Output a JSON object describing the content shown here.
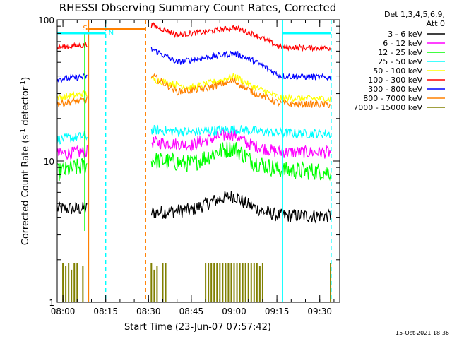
{
  "chart_data": {
    "type": "line",
    "title": "RHESSI Observing Summary Count Rates, Corrected",
    "xlabel": "Start Time (23-Jun-07 07:57:42)",
    "ylabel_parts": {
      "a": "Corrected Count Rate (s",
      "sup1": "-1",
      "b": " detector",
      "sup2": "-1",
      "c": ")"
    },
    "yscale": "log",
    "ylim": [
      1,
      100
    ],
    "x_range_min": [
      -2,
      97
    ],
    "x_ticks": [
      "08:00",
      "08:15",
      "08:30",
      "08:45",
      "09:00",
      "09:15",
      "09:30"
    ],
    "x_tick_min": [
      0,
      15,
      30,
      45,
      60,
      75,
      90
    ],
    "y_ticks": [
      {
        "v": 1,
        "label": "1"
      },
      {
        "v": 10,
        "label": "10"
      },
      {
        "v": 100,
        "label": "100"
      }
    ],
    "legend_header": [
      "Det 1,3,4,5,6,9,",
      "Att 0"
    ],
    "legend_position": "right",
    "timestamp": "15-Oct-2021 18:36",
    "data_gap_min": [
      8.5,
      31
    ],
    "flags": {
      "saa": {
        "label": "S",
        "color": "#ff8000",
        "start_min": 8.5,
        "end_min": 29
      },
      "night": [
        {
          "label": "N",
          "color": "#00ffff",
          "start_min": -2,
          "end_min": 15
        },
        {
          "label": "",
          "color": "#00ffff",
          "start_min": 77,
          "end_min": 94
        }
      ]
    },
    "markers": [
      {
        "kind": "cyan-dashed",
        "x_min": 15,
        "color": "#00ffff"
      },
      {
        "kind": "orange-solid",
        "x_min": 9,
        "color": "#ff8000"
      },
      {
        "kind": "orange-dashed",
        "x_min": 29,
        "color": "#ff8000"
      },
      {
        "kind": "cyan-solid",
        "x_min": 77,
        "color": "#00ffff"
      },
      {
        "kind": "cyan-dashed",
        "x_min": 94,
        "color": "#00ffff"
      }
    ],
    "series": [
      {
        "name": "3 - 6 keV",
        "color": "#000000",
        "jitter": 1.0,
        "points": [
          [
            -2,
            4.6
          ],
          [
            8,
            4.6
          ],
          [
            31,
            4.3
          ],
          [
            45,
            4.5
          ],
          [
            55,
            5.4
          ],
          [
            60,
            5.7
          ],
          [
            64,
            5.0
          ],
          [
            70,
            4.4
          ],
          [
            76,
            4.1
          ],
          [
            94,
            4.1
          ]
        ]
      },
      {
        "name": "6 - 12 keV",
        "color": "#ff00ff",
        "jitter": 0.9,
        "points": [
          [
            -2,
            11.2
          ],
          [
            8,
            11.6
          ],
          [
            31,
            13.6
          ],
          [
            45,
            13.0
          ],
          [
            55,
            15.0
          ],
          [
            60,
            15.5
          ],
          [
            65,
            13.2
          ],
          [
            75,
            11.6
          ],
          [
            94,
            11.5
          ]
        ]
      },
      {
        "name": "12 - 25 keV",
        "color": "#00ff00",
        "jitter": 1.3,
        "points": [
          [
            -2,
            8.3
          ],
          [
            8,
            9.3
          ],
          [
            31,
            10.2
          ],
          [
            45,
            9.5
          ],
          [
            55,
            11.8
          ],
          [
            60,
            12.4
          ],
          [
            66,
            10.0
          ],
          [
            76,
            8.6
          ],
          [
            94,
            8.4
          ]
        ]
      },
      {
        "name": "25 - 50 keV",
        "color": "#00ffff",
        "jitter": 0.7,
        "points": [
          [
            -2,
            14.2
          ],
          [
            8,
            15.0
          ],
          [
            31,
            16.6
          ],
          [
            45,
            16.0
          ],
          [
            60,
            16.8
          ],
          [
            75,
            15.8
          ],
          [
            94,
            15.6
          ]
        ]
      },
      {
        "name": "50 - 100 keV",
        "color": "#ffff00",
        "jitter": 0.5,
        "points": [
          [
            -2,
            28.0
          ],
          [
            8,
            30.0
          ],
          [
            31,
            38.0
          ],
          [
            45,
            33.0
          ],
          [
            55,
            37.0
          ],
          [
            60,
            40.0
          ],
          [
            66,
            34.0
          ],
          [
            76,
            28.0
          ],
          [
            94,
            27.5
          ]
        ]
      },
      {
        "name": "100 - 300 keV",
        "color": "#ff0000",
        "jitter": 0.4,
        "points": [
          [
            -2,
            64.0
          ],
          [
            8,
            66.0
          ],
          [
            31,
            92.0
          ],
          [
            40,
            78.0
          ],
          [
            50,
            82.0
          ],
          [
            60,
            88.0
          ],
          [
            66,
            80.0
          ],
          [
            76,
            64.0
          ],
          [
            94,
            63.0
          ]
        ]
      },
      {
        "name": "300 - 800 keV",
        "color": "#0000ff",
        "jitter": 0.45,
        "points": [
          [
            -2,
            38.0
          ],
          [
            8,
            39.5
          ],
          [
            31,
            62.0
          ],
          [
            40,
            50.0
          ],
          [
            50,
            54.0
          ],
          [
            60,
            58.0
          ],
          [
            66,
            52.0
          ],
          [
            76,
            40.0
          ],
          [
            94,
            39.0
          ]
        ]
      },
      {
        "name": "800 - 7000 keV",
        "color": "#ff8000",
        "jitter": 0.5,
        "points": [
          [
            -2,
            25.5
          ],
          [
            8,
            27.0
          ],
          [
            31,
            40.0
          ],
          [
            40,
            31.0
          ],
          [
            50,
            32.5
          ],
          [
            60,
            37.0
          ],
          [
            66,
            31.0
          ],
          [
            76,
            25.5
          ],
          [
            94,
            25.0
          ]
        ]
      },
      {
        "name": "7000 - 15000 keV",
        "color": "#808000",
        "jitter": 0,
        "points": [
          [
            -2,
            1.0
          ],
          [
            94,
            1.0
          ]
        ],
        "spikes": [
          [
            0,
            1.9
          ],
          [
            1,
            1.8
          ],
          [
            2,
            1.9
          ],
          [
            3,
            1.7
          ],
          [
            4,
            1.9
          ],
          [
            5,
            1.9
          ],
          [
            7,
            1.8
          ],
          [
            31,
            1.9
          ],
          [
            32,
            1.7
          ],
          [
            33,
            1.8
          ],
          [
            35,
            1.9
          ],
          [
            36,
            1.9
          ],
          [
            50,
            1.9
          ],
          [
            51,
            1.9
          ],
          [
            52,
            1.9
          ],
          [
            53,
            1.9
          ],
          [
            54,
            1.9
          ],
          [
            55,
            1.9
          ],
          [
            56,
            1.9
          ],
          [
            57,
            1.9
          ],
          [
            58,
            1.9
          ],
          [
            59,
            1.9
          ],
          [
            60,
            1.9
          ],
          [
            61,
            1.9
          ],
          [
            62,
            1.9
          ],
          [
            63,
            1.9
          ],
          [
            64,
            1.9
          ],
          [
            65,
            1.9
          ],
          [
            66,
            1.9
          ],
          [
            67,
            1.9
          ],
          [
            68,
            1.9
          ],
          [
            69,
            1.8
          ],
          [
            70,
            1.9
          ],
          [
            93.8,
            1.9
          ]
        ]
      }
    ]
  }
}
